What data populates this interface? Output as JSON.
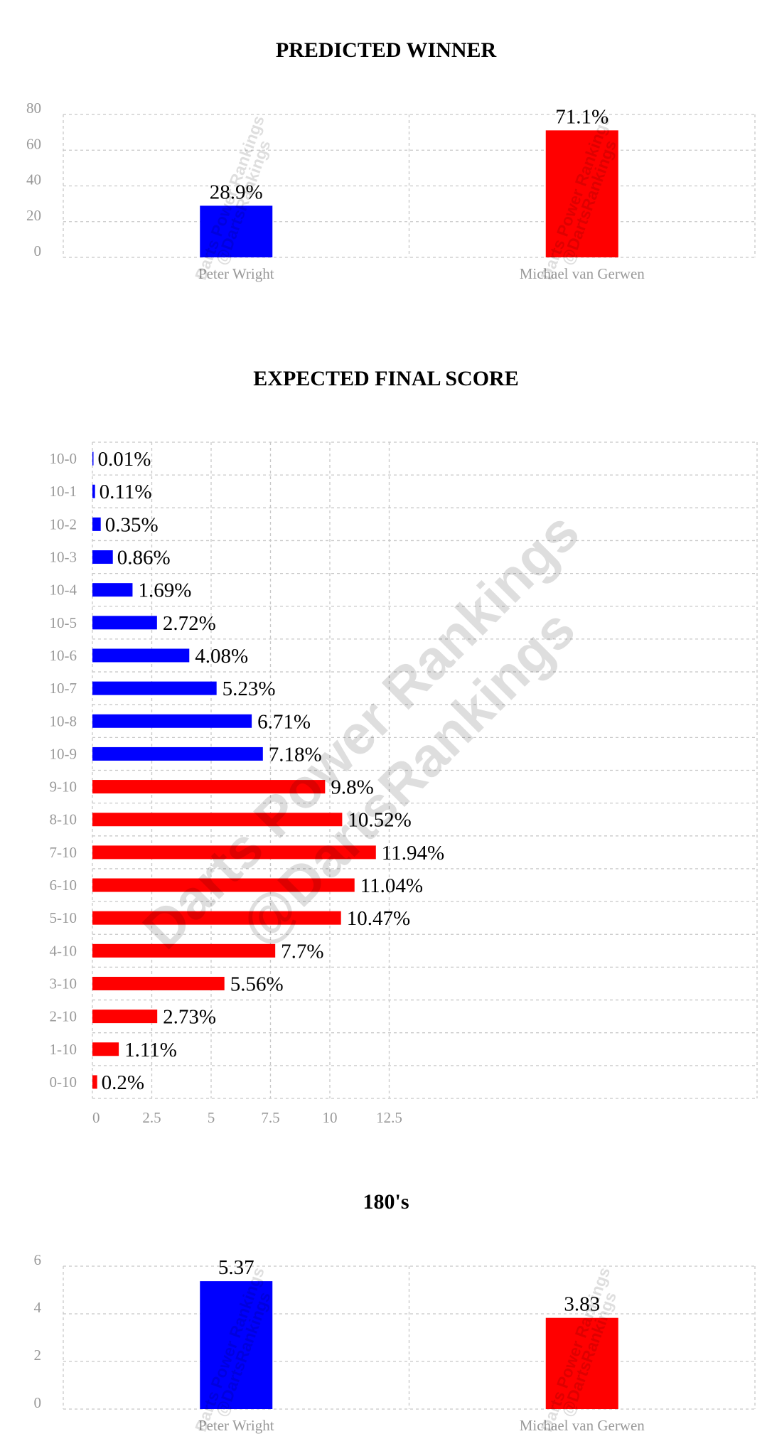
{
  "colors": {
    "blue": "#0000ff",
    "red": "#ff0000"
  },
  "chart_data": [
    {
      "type": "bar",
      "title": "PREDICTED WINNER",
      "categories": [
        "Peter Wright",
        "Michael van Gerwen"
      ],
      "values": [
        28.9,
        71.1
      ],
      "value_labels": [
        "28.9%",
        "71.1%"
      ],
      "colors": [
        "#0000ff",
        "#ff0000"
      ],
      "ylim": [
        0,
        80
      ],
      "yticks": [
        "0",
        "20",
        "40",
        "60",
        "80"
      ],
      "grid": true,
      "watermark": [
        "Darts Power Rankings",
        "@DartsRankings"
      ]
    },
    {
      "type": "bar",
      "orientation": "horizontal",
      "title": "EXPECTED FINAL SCORE",
      "categories": [
        "10-0",
        "10-1",
        "10-2",
        "10-3",
        "10-4",
        "10-5",
        "10-6",
        "10-7",
        "10-8",
        "10-9",
        "9-10",
        "8-10",
        "7-10",
        "6-10",
        "5-10",
        "4-10",
        "3-10",
        "2-10",
        "1-10",
        "0-10"
      ],
      "values": [
        0.01,
        0.11,
        0.35,
        0.86,
        1.69,
        2.72,
        4.08,
        5.23,
        6.71,
        7.18,
        9.8,
        10.52,
        11.94,
        11.04,
        10.47,
        7.7,
        5.56,
        2.73,
        1.11,
        0.2
      ],
      "value_labels": [
        "0.01%",
        "0.11%",
        "0.35%",
        "0.86%",
        "1.69%",
        "2.72%",
        "4.08%",
        "5.23%",
        "6.71%",
        "7.18%",
        "9.8%",
        "10.52%",
        "11.94%",
        "11.04%",
        "10.47%",
        "7.7%",
        "5.56%",
        "2.73%",
        "1.11%",
        "0.2%"
      ],
      "colors": [
        "#0000ff",
        "#0000ff",
        "#0000ff",
        "#0000ff",
        "#0000ff",
        "#0000ff",
        "#0000ff",
        "#0000ff",
        "#0000ff",
        "#0000ff",
        "#ff0000",
        "#ff0000",
        "#ff0000",
        "#ff0000",
        "#ff0000",
        "#ff0000",
        "#ff0000",
        "#ff0000",
        "#ff0000",
        "#ff0000"
      ],
      "xlim": [
        0,
        12.5
      ],
      "xticks": [
        "0",
        "2.5",
        "5",
        "7.5",
        "10",
        "12.5"
      ],
      "grid": true,
      "watermark": [
        "Darts Power Rankings",
        "@DartsRankings"
      ]
    },
    {
      "type": "bar",
      "title": "180's",
      "categories": [
        "Peter Wright",
        "Michael van Gerwen"
      ],
      "values": [
        5.37,
        3.83
      ],
      "value_labels": [
        "5.37",
        "3.83"
      ],
      "colors": [
        "#0000ff",
        "#ff0000"
      ],
      "ylim": [
        0,
        6
      ],
      "yticks": [
        "0",
        "2",
        "4",
        "6"
      ],
      "grid": true,
      "watermark": [
        "Darts Power Rankings",
        "@DartsRankings"
      ]
    }
  ]
}
